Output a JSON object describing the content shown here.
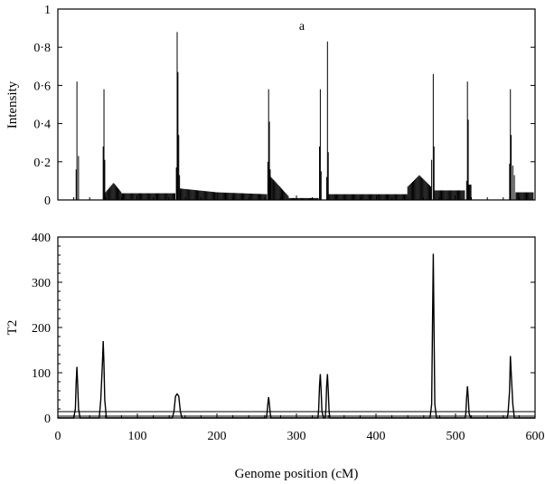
{
  "chart_data": [
    {
      "type": "bar",
      "title": "a",
      "xlabel": "",
      "ylabel": "Intensity",
      "xlim": [
        0,
        600
      ],
      "ylim": [
        0,
        1
      ],
      "yticks": [
        "0",
        "0·2",
        "0·4",
        "0·6",
        "0·8",
        "1"
      ],
      "ytick_values": [
        0,
        0.2,
        0.4,
        0.6,
        0.8,
        1
      ],
      "xticks": [
        0,
        100,
        200,
        300,
        400,
        500,
        600
      ],
      "xtick_labels_shown": false,
      "grid": false,
      "peaks": [
        {
          "x": 24,
          "y": 0.62
        },
        {
          "x": 26,
          "y": 0.23
        },
        {
          "x": 23,
          "y": 0.16
        },
        {
          "x": 58,
          "y": 0.58
        },
        {
          "x": 57,
          "y": 0.28
        },
        {
          "x": 59,
          "y": 0.21
        },
        {
          "x": 150,
          "y": 0.88
        },
        {
          "x": 151,
          "y": 0.67
        },
        {
          "x": 152,
          "y": 0.34
        },
        {
          "x": 149,
          "y": 0.17
        },
        {
          "x": 153,
          "y": 0.13
        },
        {
          "x": 265,
          "y": 0.58
        },
        {
          "x": 266,
          "y": 0.41
        },
        {
          "x": 264,
          "y": 0.2
        },
        {
          "x": 267,
          "y": 0.16
        },
        {
          "x": 330,
          "y": 0.58
        },
        {
          "x": 329,
          "y": 0.28
        },
        {
          "x": 331,
          "y": 0.15
        },
        {
          "x": 339,
          "y": 0.83
        },
        {
          "x": 340,
          "y": 0.25
        },
        {
          "x": 338,
          "y": 0.12
        },
        {
          "x": 472,
          "y": 0.66
        },
        {
          "x": 473,
          "y": 0.28
        },
        {
          "x": 470,
          "y": 0.21
        },
        {
          "x": 515,
          "y": 0.62
        },
        {
          "x": 516,
          "y": 0.42
        },
        {
          "x": 514,
          "y": 0.1
        },
        {
          "x": 569,
          "y": 0.58
        },
        {
          "x": 570,
          "y": 0.34
        },
        {
          "x": 568,
          "y": 0.19
        },
        {
          "x": 572,
          "y": 0.18
        },
        {
          "x": 574,
          "y": 0.13
        }
      ],
      "baseline_segments": [
        {
          "x_start": 28,
          "x_end": 56,
          "y": 0.0
        },
        {
          "x_start": 60,
          "x_end": 80,
          "y_start": 0.07,
          "y_peak": 0.09,
          "y_end": 0.04
        },
        {
          "x_start": 80,
          "x_end": 148,
          "y": 0.035
        },
        {
          "x_start": 154,
          "x_end": 200,
          "y_start": 0.06,
          "y_end": 0.04
        },
        {
          "x_start": 200,
          "x_end": 263,
          "y_start": 0.04,
          "y_end": 0.03
        },
        {
          "x_start": 268,
          "x_end": 290,
          "y_start": 0.12,
          "y_end": 0.02
        },
        {
          "x_start": 290,
          "x_end": 328,
          "y": 0.01
        },
        {
          "x_start": 341,
          "x_end": 440,
          "y": 0.03
        },
        {
          "x_start": 440,
          "x_end": 469,
          "y_start": 0.07,
          "y_peak": 0.13,
          "y_end": 0.1
        },
        {
          "x_start": 474,
          "x_end": 512,
          "y": 0.05
        },
        {
          "x_start": 517,
          "x_end": 520,
          "y": 0.08
        },
        {
          "x_start": 576,
          "x_end": 598,
          "y": 0.04
        }
      ]
    },
    {
      "type": "line",
      "title": "",
      "xlabel": "Genome position (cM)",
      "ylabel": "T2",
      "xlim": [
        0,
        600
      ],
      "ylim": [
        0,
        400
      ],
      "yticks": [
        "0",
        "100",
        "200",
        "300",
        "400"
      ],
      "ytick_values": [
        0,
        100,
        200,
        300,
        400
      ],
      "xticks": [
        "0",
        "100",
        "200",
        "300",
        "400",
        "500",
        "600"
      ],
      "xtick_values": [
        0,
        100,
        200,
        300,
        400,
        500,
        600
      ],
      "grid": false,
      "thresholds": [
        4,
        14
      ],
      "series": [
        {
          "x": [
            0,
            20,
            22,
            23,
            24,
            25,
            26,
            28,
            52,
            54,
            56,
            57,
            58,
            59,
            61,
            144,
            146,
            148,
            150,
            152,
            154,
            156,
            262,
            263,
            264,
            265,
            266,
            267,
            268,
            327,
            328,
            329,
            330,
            331,
            332,
            334,
            336,
            337,
            338,
            339,
            340,
            341,
            342,
            468,
            470,
            471,
            472,
            473,
            474,
            476,
            512,
            513,
            514,
            515,
            516,
            517,
            519,
            565,
            566,
            568,
            569,
            570,
            572,
            574,
            600
          ],
          "y": [
            0,
            0,
            20,
            75,
            113,
            70,
            20,
            0,
            0,
            40,
            120,
            170,
            120,
            40,
            0,
            0,
            15,
            48,
            53,
            48,
            15,
            0,
            0,
            10,
            30,
            46,
            30,
            10,
            0,
            0,
            20,
            70,
            97,
            60,
            15,
            0,
            0,
            20,
            70,
            97,
            60,
            15,
            0,
            0,
            30,
            200,
            363,
            200,
            30,
            0,
            0,
            10,
            45,
            70,
            45,
            10,
            0,
            0,
            10,
            60,
            137,
            100,
            30,
            0,
            0
          ]
        }
      ]
    }
  ]
}
